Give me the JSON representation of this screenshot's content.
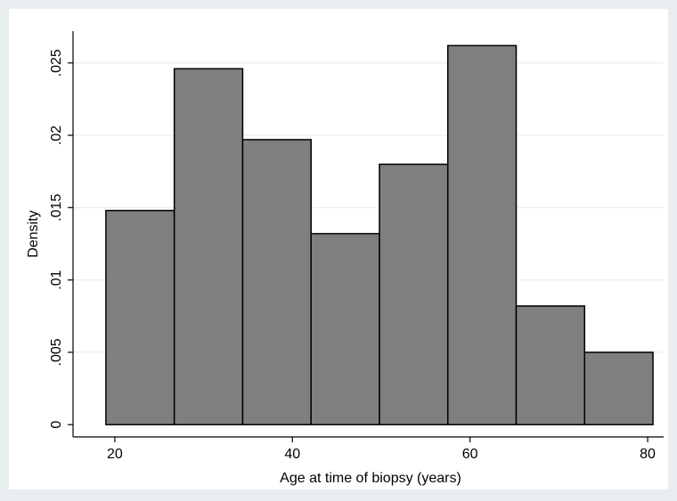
{
  "chart_data": {
    "type": "bar",
    "subtype": "histogram",
    "bins": [
      {
        "x0": 19.0,
        "x1": 26.7,
        "density": 0.0148
      },
      {
        "x0": 26.7,
        "x1": 34.4,
        "density": 0.0246
      },
      {
        "x0": 34.4,
        "x1": 42.1,
        "density": 0.0197
      },
      {
        "x0": 42.1,
        "x1": 49.8,
        "density": 0.0132
      },
      {
        "x0": 49.8,
        "x1": 57.5,
        "density": 0.018
      },
      {
        "x0": 57.5,
        "x1": 65.2,
        "density": 0.0262
      },
      {
        "x0": 65.2,
        "x1": 72.9,
        "density": 0.0082
      },
      {
        "x0": 72.9,
        "x1": 80.6,
        "density": 0.005
      }
    ],
    "xlabel": "Age at time of biopsy (years)",
    "ylabel": "Density",
    "xlim": [
      15.3,
      81.8
    ],
    "ylim": [
      -0.00085,
      0.0272
    ],
    "xticks": [
      20,
      40,
      60,
      80
    ],
    "xtick_labels": [
      "20",
      "40",
      "60",
      "80"
    ],
    "yticks": [
      0,
      0.005,
      0.01,
      0.015,
      0.02,
      0.025
    ],
    "ytick_labels": [
      "0",
      ".005",
      ".01",
      ".015",
      ".02",
      ".025"
    ],
    "grid": true,
    "legend": "none",
    "colors": {
      "bar_fill": "#7f7f7f",
      "bar_stroke": "#000000",
      "plot_background": "#ffffff",
      "outer_background": "#e8edf0",
      "grid": "#e6eaed"
    }
  }
}
